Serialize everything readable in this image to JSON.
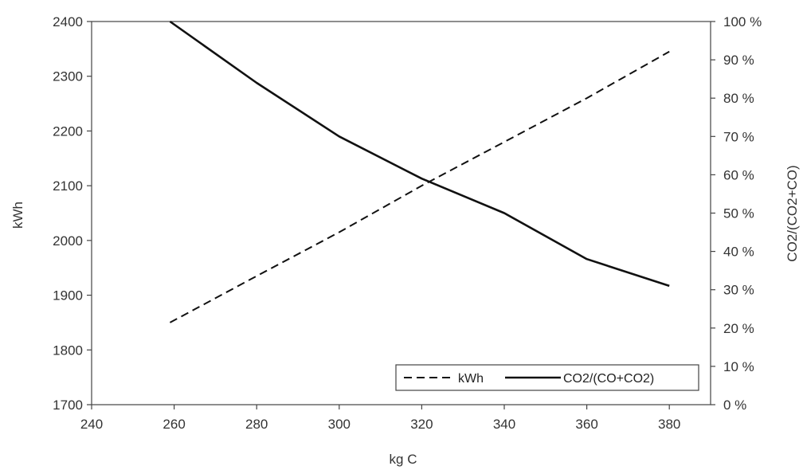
{
  "chart_data": {
    "type": "line",
    "xlabel": "kg C",
    "ylabel": "kWh",
    "y2label": "CO2/(CO2+CO)",
    "xlim": [
      240,
      390
    ],
    "ylim": [
      1700,
      2400
    ],
    "y2lim": [
      0,
      100
    ],
    "x_ticks": [
      "240",
      "260",
      "280",
      "300",
      "320",
      "340",
      "360",
      "380"
    ],
    "y_ticks": [
      "1700",
      "1800",
      "1900",
      "2000",
      "2100",
      "2200",
      "2300",
      "2400"
    ],
    "y2_ticks": [
      "0 %",
      "10 %",
      "20 %",
      "30 %",
      "40 %",
      "50 %",
      "60 %",
      "70 %",
      "80 %",
      "90 %",
      "100 %"
    ],
    "grid": false,
    "legend_position": "bottom-right",
    "series": [
      {
        "name": "kWh",
        "axis": "left",
        "style": "dashed",
        "color": "#111111",
        "x": [
          259,
          280,
          300,
          320,
          340,
          360,
          380
        ],
        "values": [
          1850,
          1935,
          2015,
          2100,
          2180,
          2260,
          2345
        ]
      },
      {
        "name": "CO2/(CO+CO2)",
        "axis": "right",
        "style": "solid",
        "color": "#111111",
        "x": [
          259,
          280,
          300,
          320,
          340,
          360,
          380
        ],
        "values": [
          100,
          84,
          70,
          59,
          50,
          38,
          31
        ]
      }
    ]
  }
}
